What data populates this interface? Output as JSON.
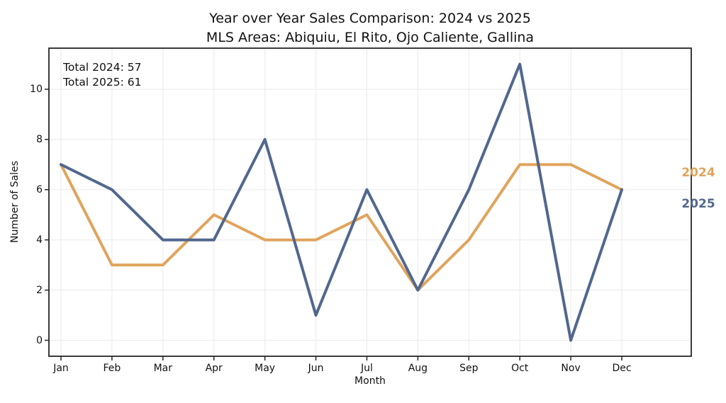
{
  "figure": {
    "title": "Year over Year Sales Comparison: 2024 vs 2025",
    "subtitle": "MLS Areas: Abiquiu, El Rito, Ojo Caliente, Gallina",
    "background": "#ffffff"
  },
  "annotation": {
    "line1": "Total 2024: 57",
    "line2": "Total 2025: 61"
  },
  "chart_data": {
    "type": "line",
    "title": "Year over Year Sales Comparison: 2024 vs 2025",
    "subtitle": "MLS Areas: Abiquiu, El Rito, Ojo Caliente, Gallina",
    "xlabel": "Month",
    "ylabel": "Number of Sales",
    "categories": [
      "Jan",
      "Feb",
      "Mar",
      "Apr",
      "May",
      "Jun",
      "Jul",
      "Aug",
      "Sep",
      "Oct",
      "Nov",
      "Dec"
    ],
    "yticks": [
      0,
      2,
      4,
      6,
      8,
      10
    ],
    "ylim": [
      -0.6,
      11.6
    ],
    "grid": true,
    "grid_color": "#ededed",
    "spine_color": "#262626",
    "legend_position": "right-outside",
    "series": [
      {
        "name": "2024",
        "color": "#e0a45c",
        "total": 57,
        "values": [
          7,
          3,
          3,
          5,
          4,
          4,
          5,
          2,
          4,
          7,
          7,
          6
        ]
      },
      {
        "name": "2025",
        "color": "#52678e",
        "total": 61,
        "values": [
          7,
          6,
          4,
          4,
          8,
          1,
          6,
          2,
          6,
          11,
          0,
          6
        ]
      }
    ]
  }
}
